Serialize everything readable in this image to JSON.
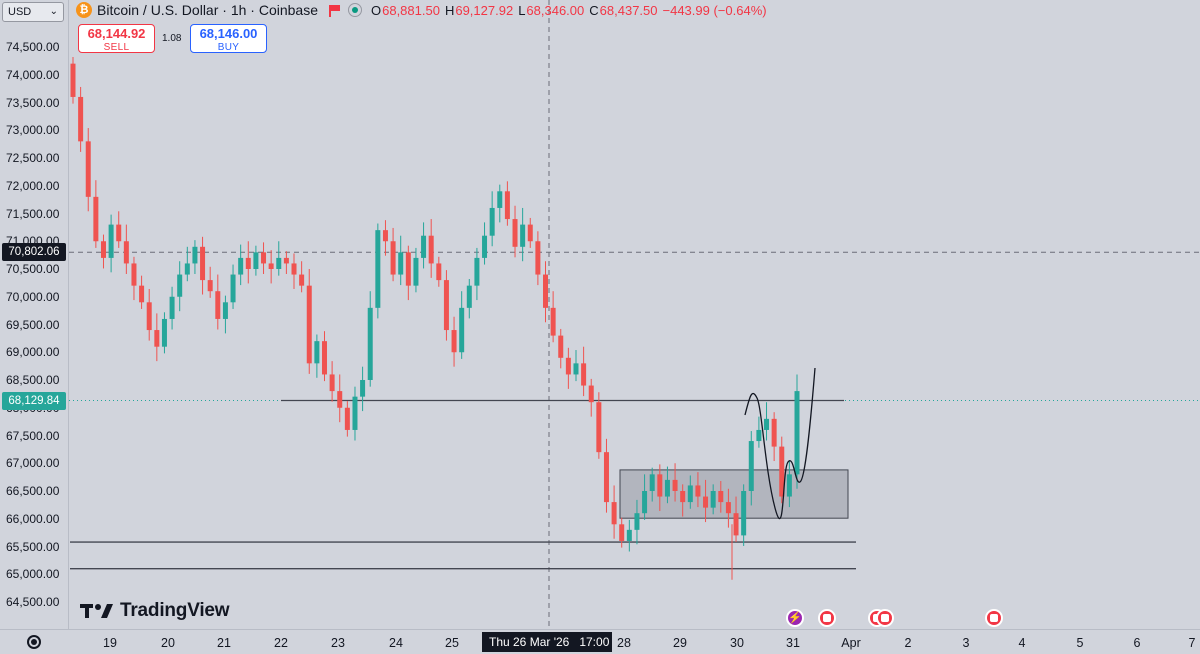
{
  "header": {
    "symbol": "Bitcoin / U.S. Dollar · 1h · Coinbase",
    "ohlc": [
      {
        "key": "O",
        "value": "68,881.50"
      },
      {
        "key": "H",
        "value": "69,127.92"
      },
      {
        "key": "L",
        "value": "68,346.00"
      },
      {
        "key": "C",
        "value": "68,437.50"
      }
    ],
    "change": "−443.99 (−0.64%)"
  },
  "currency": "USD",
  "trade": {
    "sell_price": "68,144.92",
    "sell_label": "SELL",
    "spread": "1.08",
    "buy_price": "68,146.00",
    "buy_label": "BUY"
  },
  "price_axis": {
    "ticks": [
      "74,500.00",
      "74,000.00",
      "73,500.00",
      "73,000.00",
      "72,500.00",
      "72,000.00",
      "71,500.00",
      "71,000.00",
      "70,500.00",
      "70,000.00",
      "69,500.00",
      "69,000.00",
      "68,500.00",
      "68,000.00",
      "67,500.00",
      "67,000.00",
      "66,500.00",
      "66,000.00",
      "65,500.00",
      "65,000.00",
      "64,500.00"
    ],
    "crosshair_price": "70,802.06",
    "last_price": "68,129.84"
  },
  "time_axis": {
    "ticks": [
      "19",
      "20",
      "21",
      "22",
      "23",
      "24",
      "25",
      "28",
      "29",
      "30",
      "31",
      "Apr",
      "2",
      "3",
      "4",
      "5",
      "6",
      "7"
    ],
    "cursor_label": "Thu 26 Mar '26   17:00"
  },
  "branding": {
    "logo_text": "TradingView"
  },
  "colors": {
    "up": "#26a69a",
    "down": "#ef5350",
    "background": "#d1d4dc"
  },
  "chart_data": {
    "type": "candlestick",
    "series": [
      {
        "name": "BTCUSD 1h",
        "points": [
          [
            74200,
            73600
          ],
          [
            73600,
            72800
          ],
          [
            72800,
            71800
          ],
          [
            71800,
            71000
          ],
          [
            71000,
            70700
          ],
          [
            70700,
            71300
          ],
          [
            71300,
            71000
          ],
          [
            71000,
            70600
          ],
          [
            70600,
            70200
          ],
          [
            70200,
            69900
          ],
          [
            69900,
            69400
          ],
          [
            69400,
            69100
          ],
          [
            69100,
            69600
          ],
          [
            69600,
            70000
          ],
          [
            70000,
            70400
          ],
          [
            70400,
            70600
          ],
          [
            70600,
            70900
          ],
          [
            70900,
            70300
          ],
          [
            70300,
            70100
          ],
          [
            70100,
            69600
          ],
          [
            69600,
            69900
          ],
          [
            69900,
            70400
          ],
          [
            70400,
            70700
          ],
          [
            70700,
            70500
          ],
          [
            70500,
            70800
          ],
          [
            70800,
            70600
          ],
          [
            70600,
            70500
          ],
          [
            70500,
            70700
          ],
          [
            70700,
            70600
          ],
          [
            70600,
            70400
          ],
          [
            70400,
            70200
          ],
          [
            70200,
            68800
          ],
          [
            68800,
            69200
          ],
          [
            69200,
            68600
          ],
          [
            68600,
            68300
          ],
          [
            68300,
            68000
          ],
          [
            68000,
            67600
          ],
          [
            67600,
            68200
          ],
          [
            68200,
            68500
          ],
          [
            68500,
            69800
          ],
          [
            69800,
            71200
          ],
          [
            71200,
            71000
          ],
          [
            71000,
            70400
          ],
          [
            70400,
            70800
          ],
          [
            70800,
            70200
          ],
          [
            70200,
            70700
          ],
          [
            70700,
            71100
          ],
          [
            71100,
            70600
          ],
          [
            70600,
            70300
          ],
          [
            70300,
            69400
          ],
          [
            69400,
            69000
          ],
          [
            69000,
            69800
          ],
          [
            69800,
            70200
          ],
          [
            70200,
            70700
          ],
          [
            70700,
            71100
          ],
          [
            71100,
            71600
          ],
          [
            71600,
            71900
          ],
          [
            71900,
            71400
          ],
          [
            71400,
            70900
          ],
          [
            70900,
            71300
          ],
          [
            71300,
            71000
          ],
          [
            71000,
            70400
          ],
          [
            70400,
            69800
          ],
          [
            69800,
            69300
          ],
          [
            69300,
            68900
          ],
          [
            68900,
            68600
          ],
          [
            68600,
            68800
          ],
          [
            68800,
            68400
          ],
          [
            68400,
            68100
          ],
          [
            68100,
            67200
          ],
          [
            67200,
            66300
          ],
          [
            66300,
            65900
          ],
          [
            65900,
            65600
          ],
          [
            65600,
            65800
          ],
          [
            65800,
            66100
          ],
          [
            66100,
            66500
          ],
          [
            66500,
            66800
          ],
          [
            66800,
            66400
          ],
          [
            66400,
            66700
          ],
          [
            66700,
            66500
          ],
          [
            66500,
            66300
          ],
          [
            66300,
            66600
          ],
          [
            66600,
            66400
          ],
          [
            66400,
            66200
          ],
          [
            66200,
            66500
          ],
          [
            66500,
            66300
          ],
          [
            66300,
            66100
          ],
          [
            66100,
            65700
          ],
          [
            65700,
            66500
          ],
          [
            66500,
            67400
          ],
          [
            67400,
            67600
          ],
          [
            67600,
            67800
          ],
          [
            67800,
            67300
          ],
          [
            67300,
            66400
          ],
          [
            66400,
            66800
          ],
          [
            66800,
            68300
          ]
        ]
      }
    ],
    "ylim": [
      64300,
      74700
    ],
    "annotations": {
      "horizontal_lines": [
        68130,
        65580,
        65100
      ],
      "rectangle": {
        "x_start": "Mar 28",
        "x_end": "Mar 31",
        "top": 66880,
        "bottom": 66010
      },
      "crosshair": {
        "time": "Thu 26 Mar '26 17:00",
        "price": 70802.06
      }
    }
  }
}
